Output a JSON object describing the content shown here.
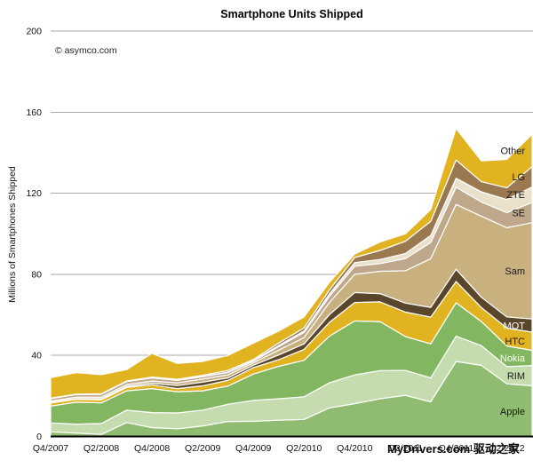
{
  "title": "Smartphone Units Shipped",
  "copyright": "© asymco.com",
  "watermark": "MyDrivers.com 驱动之家",
  "y_axis": {
    "title": "Millions of Smartphones Shipped",
    "ticks": [
      200,
      160,
      120,
      80,
      40,
      0
    ]
  },
  "x_axis": {
    "labels": [
      "Q4/2007",
      "Q2/2008",
      "Q4/2008",
      "Q2/2009",
      "Q4/2009",
      "Q2/2010",
      "Q4/2010",
      "Q2/2011",
      "Q4/2011",
      "Q2/2012"
    ]
  },
  "chart_data": {
    "type": "area",
    "stacked": true,
    "grid": true,
    "ylim": [
      0,
      200
    ],
    "x": [
      "Q4/2007",
      "Q1/2008",
      "Q2/2008",
      "Q3/2008",
      "Q4/2008",
      "Q1/2009",
      "Q2/2009",
      "Q3/2009",
      "Q4/2009",
      "Q1/2010",
      "Q2/2010",
      "Q3/2010",
      "Q4/2010",
      "Q1/2011",
      "Q2/2011",
      "Q3/2011",
      "Q4/2011",
      "Q1/2012",
      "Q2/2012",
      "Q3/2012"
    ],
    "series": [
      {
        "name": "Apple",
        "color": "#8FBC71",
        "label_color": "#1a1a1a",
        "values": [
          2.3,
          1.7,
          1.0,
          6.9,
          4.4,
          3.8,
          5.2,
          7.4,
          7.5,
          8.0,
          8.4,
          14.1,
          16.2,
          18.6,
          20.3,
          17.1,
          37.0,
          35.1,
          26.0,
          25.0
        ]
      },
      {
        "name": "RIM",
        "color": "#C5DCAF",
        "label_color": "#1a1a1a",
        "values": [
          4.4,
          4.4,
          5.4,
          6.1,
          7.4,
          7.8,
          7.8,
          8.5,
          10.3,
          10.6,
          11.2,
          12.4,
          14.2,
          13.9,
          12.3,
          11.8,
          12.5,
          9.7,
          8.5,
          10.0
        ]
      },
      {
        "name": "Nokia",
        "color": "#83B660",
        "label_color": "#ffffff",
        "values": [
          8.3,
          10.8,
          10.2,
          9.5,
          11.8,
          10.5,
          9.5,
          9.0,
          13.0,
          16.0,
          18.0,
          23.0,
          26.6,
          24.2,
          16.7,
          16.8,
          16.5,
          11.9,
          10.2,
          7.5
        ]
      },
      {
        "name": "HTC",
        "color": "#E2B320",
        "label_color": "#1a1a1a",
        "values": [
          1.5,
          1.4,
          1.5,
          1.7,
          1.9,
          1.5,
          2.5,
          2.8,
          3.2,
          3.3,
          5.4,
          6.8,
          9.1,
          9.7,
          12.1,
          13.2,
          10.5,
          6.9,
          8.8,
          9.0
        ]
      },
      {
        "name": "MOT",
        "color": "#59462B",
        "label_color": "#ffffff",
        "values": [
          0.4,
          0.4,
          0.5,
          0.5,
          0.8,
          1.5,
          1.8,
          1.2,
          1.2,
          2.3,
          2.7,
          3.8,
          4.9,
          4.1,
          4.4,
          4.8,
          6.0,
          5.1,
          5.5,
          6.5
        ]
      },
      {
        "name": "Sam",
        "color": "#C8B07F",
        "label_color": "#1a1a1a",
        "values": [
          0.6,
          0.7,
          0.8,
          0.9,
          1.1,
          1.3,
          1.5,
          1.5,
          1.2,
          2.4,
          3.1,
          6.0,
          9.0,
          11.0,
          16.0,
          24.0,
          32.0,
          40.0,
          44.0,
          47.5
        ]
      },
      {
        "name": "SE",
        "color": "#BFA78C",
        "label_color": "#1a1a1a",
        "values": [
          1.2,
          1.3,
          1.4,
          1.5,
          1.5,
          1.3,
          1.2,
          1.2,
          0.8,
          1.8,
          2.5,
          3.0,
          4.0,
          3.8,
          6.0,
          8.0,
          8.5,
          7.0,
          7.4,
          10.0
        ]
      },
      {
        "name": "ZTE",
        "color": "#EBE1CB",
        "label_color": "#1a1a1a",
        "values": [
          0,
          0,
          0,
          0,
          0,
          0,
          0.1,
          0.2,
          0.3,
          0.5,
          0.8,
          1.2,
          1.8,
          2.0,
          2.5,
          3.5,
          4.4,
          5.0,
          6.5,
          7.6
        ]
      },
      {
        "name": "LG",
        "color": "#9A7850",
        "label_color": "#1a1a1a",
        "values": [
          0.2,
          0.2,
          0.3,
          0.3,
          0.4,
          0.5,
          0.6,
          0.8,
          0.5,
          1.2,
          1.5,
          2.0,
          2.5,
          4.5,
          6.0,
          7.0,
          9.0,
          5.0,
          5.8,
          10.0
        ]
      },
      {
        "name": "Other",
        "color": "#E2B320",
        "label_color": "#1a1a1a",
        "values": [
          10.1,
          10.6,
          9.4,
          5.6,
          11.7,
          7.8,
          6.8,
          7.4,
          8.0,
          5.9,
          5.4,
          3.7,
          1.7,
          4.2,
          3.7,
          5.8,
          15.6,
          10.3,
          14.0,
          16.0
        ]
      }
    ]
  },
  "style": {
    "grid_color": "#A9A9A9",
    "axis_color": "#000000",
    "band_stroke": "#ffffff",
    "text_color": "#111111"
  }
}
